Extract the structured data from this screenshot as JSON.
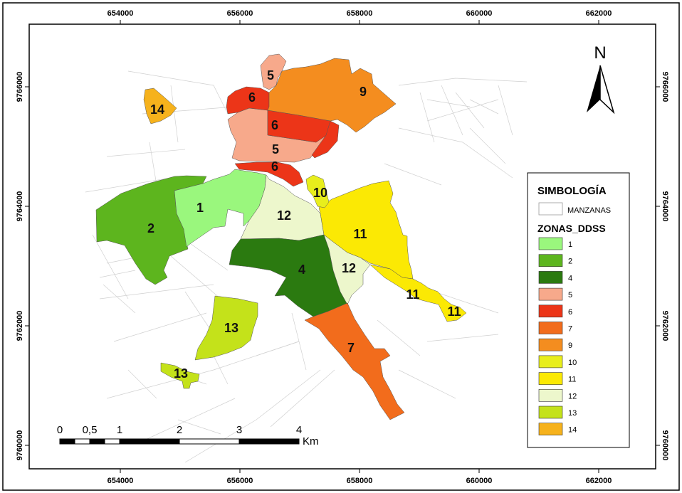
{
  "colors": {
    "z1": "#9af77d",
    "z2": "#5db51e",
    "z4": "#2b7a10",
    "z5": "#f7a98b",
    "z6": "#ec3518",
    "z7": "#f26c1c",
    "z9": "#f48d1f",
    "z10": "#e8ee1c",
    "z11": "#fbe904",
    "z12": "#edf7cc",
    "z13": "#c4e21a",
    "z14": "#f6b21c",
    "streets": "#cfcfcf",
    "frame": "#000000"
  },
  "map": {
    "x_ticks": [
      "654000",
      "656000",
      "658000",
      "660000",
      "662000"
    ],
    "y_ticks": [
      "9766000",
      "9764000",
      "9762000",
      "9760000"
    ]
  },
  "zones": {
    "z1": "1",
    "z2": "2",
    "z4": "4",
    "z5a": "5",
    "z5b": "5",
    "z6a": "6",
    "z6b": "6",
    "z6c": "6",
    "z7": "7",
    "z9": "9",
    "z10": "10",
    "z11a": "11",
    "z11b": "11",
    "z11c": "11",
    "z12a": "12",
    "z12b": "12",
    "z13a": "13",
    "z13b": "13",
    "z14": "14"
  },
  "north_arrow": {
    "label": "N"
  },
  "legend": {
    "title": "SIMBOLOGÍA",
    "manzanas_label": "MANZANAS",
    "zones_title": "ZONAS_DDSS",
    "items": [
      {
        "label": "1",
        "color": "#9af77d"
      },
      {
        "label": "2",
        "color": "#5db51e"
      },
      {
        "label": "4",
        "color": "#2b7a10"
      },
      {
        "label": "5",
        "color": "#f7a98b"
      },
      {
        "label": "6",
        "color": "#ec3518"
      },
      {
        "label": "7",
        "color": "#f26c1c"
      },
      {
        "label": "9",
        "color": "#f48d1f"
      },
      {
        "label": "10",
        "color": "#e8ee1c"
      },
      {
        "label": "11",
        "color": "#fbe904"
      },
      {
        "label": "12",
        "color": "#edf7cc"
      },
      {
        "label": "13",
        "color": "#c4e21a"
      },
      {
        "label": "14",
        "color": "#f6b21c"
      }
    ]
  },
  "scale_bar": {
    "labels": [
      "0",
      "0,5",
      "1",
      "2",
      "3",
      "4"
    ],
    "unit": "Km"
  }
}
